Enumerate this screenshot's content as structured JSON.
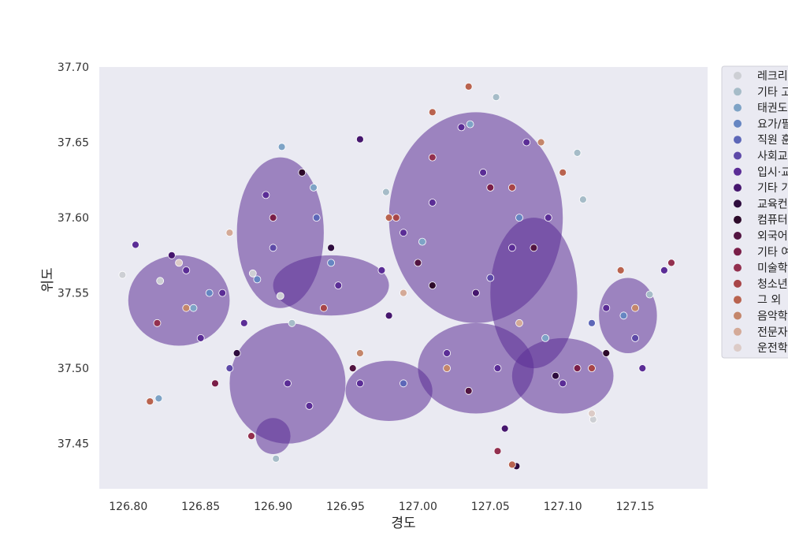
{
  "chart_data": {
    "type": "scatter",
    "title": "",
    "xlabel": "경도",
    "ylabel": "위도",
    "xlim": [
      126.78,
      127.2
    ],
    "ylim": [
      37.42,
      37.7
    ],
    "xticks": [
      "126.80",
      "126.85",
      "126.90",
      "126.95",
      "127.00",
      "127.05",
      "127.10",
      "127.15"
    ],
    "yticks": [
      "37.45",
      "37.50",
      "37.55",
      "37.60",
      "37.65",
      "37.70"
    ],
    "grid": false,
    "background_color": "#eaeaf2",
    "legend_position": "right",
    "legend": [
      {
        "label": "레크리",
        "color": "#cdcfd4"
      },
      {
        "label": "기타 고",
        "color": "#a6bcc8"
      },
      {
        "label": "태권도",
        "color": "#7ea3c6"
      },
      {
        "label": "요가/필",
        "color": "#6686c2"
      },
      {
        "label": "직원 훈",
        "color": "#5d67b8"
      },
      {
        "label": "사회교",
        "color": "#5e4aa8"
      },
      {
        "label": "입시·교",
        "color": "#5b2d96"
      },
      {
        "label": "기타 기",
        "color": "#46166e"
      },
      {
        "label": "교육컨",
        "color": "#2e0c3e"
      },
      {
        "label": "컴퓨터",
        "color": "#2d0a2a"
      },
      {
        "label": "외국어",
        "color": "#521441"
      },
      {
        "label": "기타 여",
        "color": "#7a1e48"
      },
      {
        "label": "미술학",
        "color": "#93304f"
      },
      {
        "label": "청소년",
        "color": "#a84548"
      },
      {
        "label": "그 외 ",
        "color": "#b9634f"
      },
      {
        "label": "음악학",
        "color": "#c4866b"
      },
      {
        "label": "전문자",
        "color": "#d4aa98"
      },
      {
        "label": "운전학",
        "color": "#dccbc7"
      }
    ],
    "series": [
      {
        "name": "레크리",
        "points": [
          [
            126.796,
            37.562
          ],
          [
            126.886,
            37.563
          ],
          [
            127.121,
            37.466
          ],
          [
            126.822,
            37.558
          ],
          [
            126.905,
            37.548
          ]
        ]
      },
      {
        "name": "기타 고",
        "points": [
          [
            127.11,
            37.643
          ],
          [
            127.114,
            37.612
          ],
          [
            126.902,
            37.44
          ],
          [
            126.978,
            37.617
          ],
          [
            127.16,
            37.549
          ],
          [
            126.913,
            37.53
          ],
          [
            127.054,
            37.68
          ]
        ]
      },
      {
        "name": "태권도",
        "points": [
          [
            126.821,
            37.48
          ],
          [
            126.906,
            37.647
          ],
          [
            126.928,
            37.62
          ],
          [
            127.036,
            37.662
          ],
          [
            127.088,
            37.52
          ],
          [
            126.845,
            37.54
          ],
          [
            127.003,
            37.584
          ]
        ]
      },
      {
        "name": "요가/필",
        "points": [
          [
            126.889,
            37.559
          ],
          [
            126.94,
            37.57
          ],
          [
            127.07,
            37.6
          ],
          [
            126.856,
            37.55
          ],
          [
            127.142,
            37.535
          ]
        ]
      },
      {
        "name": "직원 훈",
        "points": [
          [
            126.99,
            37.49
          ],
          [
            127.12,
            37.53
          ],
          [
            126.93,
            37.6
          ]
        ]
      },
      {
        "name": "사회교",
        "points": [
          [
            126.9,
            37.58
          ],
          [
            127.05,
            37.56
          ],
          [
            126.87,
            37.5
          ],
          [
            127.15,
            37.52
          ]
        ]
      },
      {
        "name": "입시·교",
        "points": [
          [
            126.805,
            37.582
          ],
          [
            126.84,
            37.565
          ],
          [
            126.85,
            37.52
          ],
          [
            126.865,
            37.55
          ],
          [
            126.88,
            37.53
          ],
          [
            126.895,
            37.615
          ],
          [
            126.91,
            37.49
          ],
          [
            126.925,
            37.475
          ],
          [
            126.945,
            37.555
          ],
          [
            126.96,
            37.49
          ],
          [
            126.975,
            37.565
          ],
          [
            126.99,
            37.59
          ],
          [
            127.01,
            37.61
          ],
          [
            127.02,
            37.51
          ],
          [
            127.03,
            37.66
          ],
          [
            127.045,
            37.63
          ],
          [
            127.055,
            37.5
          ],
          [
            127.065,
            37.58
          ],
          [
            127.075,
            37.65
          ],
          [
            127.09,
            37.6
          ],
          [
            127.1,
            37.49
          ],
          [
            127.13,
            37.54
          ],
          [
            127.155,
            37.5
          ],
          [
            127.17,
            37.565
          ]
        ]
      },
      {
        "name": "기타 기",
        "points": [
          [
            126.96,
            37.652
          ],
          [
            127.06,
            37.46
          ],
          [
            126.98,
            37.535
          ],
          [
            127.04,
            37.55
          ],
          [
            126.83,
            37.575
          ]
        ]
      },
      {
        "name": "교육컨",
        "points": [
          [
            127.068,
            37.435
          ],
          [
            126.94,
            37.58
          ],
          [
            127.095,
            37.495
          ],
          [
            126.875,
            37.51
          ]
        ]
      },
      {
        "name": "컴퓨터",
        "points": [
          [
            127.01,
            37.555
          ],
          [
            126.92,
            37.63
          ],
          [
            127.13,
            37.51
          ]
        ]
      },
      {
        "name": "외국어",
        "points": [
          [
            127.0,
            37.57
          ],
          [
            127.08,
            37.58
          ],
          [
            126.955,
            37.5
          ],
          [
            127.035,
            37.485
          ]
        ]
      },
      {
        "name": "기타 여",
        "points": [
          [
            126.9,
            37.6
          ],
          [
            127.05,
            37.62
          ],
          [
            127.11,
            37.5
          ],
          [
            126.86,
            37.49
          ]
        ]
      },
      {
        "name": "미술학",
        "points": [
          [
            126.885,
            37.455
          ],
          [
            127.055,
            37.445
          ],
          [
            127.175,
            37.57
          ],
          [
            126.82,
            37.53
          ],
          [
            127.01,
            37.64
          ]
        ]
      },
      {
        "name": "청소년",
        "points": [
          [
            126.935,
            37.54
          ],
          [
            127.065,
            37.62
          ],
          [
            127.12,
            37.5
          ],
          [
            126.985,
            37.6
          ]
        ]
      },
      {
        "name": "그 외 ",
        "points": [
          [
            127.065,
            37.436
          ],
          [
            127.035,
            37.687
          ],
          [
            126.815,
            37.478
          ],
          [
            127.14,
            37.565
          ],
          [
            127.01,
            37.67
          ],
          [
            127.1,
            37.63
          ],
          [
            126.98,
            37.6
          ]
        ]
      },
      {
        "name": "음악학",
        "points": [
          [
            126.84,
            37.54
          ],
          [
            127.085,
            37.65
          ],
          [
            126.96,
            37.51
          ],
          [
            127.15,
            37.54
          ],
          [
            127.02,
            37.5
          ]
        ]
      },
      {
        "name": "전문자",
        "points": [
          [
            126.99,
            37.55
          ],
          [
            127.07,
            37.53
          ],
          [
            126.87,
            37.59
          ]
        ]
      },
      {
        "name": "운전학",
        "points": [
          [
            126.835,
            37.57
          ],
          [
            127.12,
            37.47
          ]
        ]
      }
    ]
  }
}
